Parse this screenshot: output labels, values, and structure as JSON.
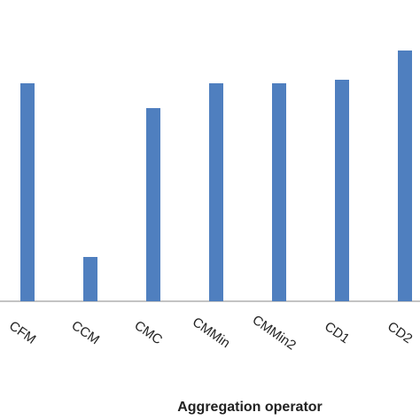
{
  "chart_data": {
    "type": "bar",
    "x_label": "Aggregation operator",
    "categories": [
      "CFM",
      "CCM",
      "CMC",
      "CMMin",
      "CMMin2",
      "CD1",
      "CD2"
    ],
    "values": [
      246,
      50,
      218,
      246,
      246,
      250,
      283
    ],
    "color": "#4f7fbf",
    "ylim": [
      0,
      340
    ]
  }
}
